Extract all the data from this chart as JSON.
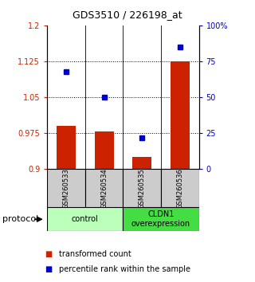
{
  "title": "GDS3510 / 226198_at",
  "samples": [
    "GSM260533",
    "GSM260534",
    "GSM260535",
    "GSM260536"
  ],
  "red_values": [
    0.99,
    0.978,
    0.925,
    1.125
  ],
  "blue_values_pct": [
    68,
    50,
    22,
    85
  ],
  "ylim_left": [
    0.9,
    1.2
  ],
  "ylim_right": [
    0,
    100
  ],
  "yticks_left": [
    0.9,
    0.975,
    1.05,
    1.125,
    1.2
  ],
  "yticks_right": [
    0,
    25,
    50,
    75,
    100
  ],
  "ytick_labels_left": [
    "0.9",
    "0.975",
    "1.05",
    "1.125",
    "1.2"
  ],
  "ytick_labels_right": [
    "0",
    "25",
    "50",
    "75",
    "100%"
  ],
  "groups": [
    {
      "label": "control",
      "samples": [
        0,
        1
      ],
      "color": "#bbffbb"
    },
    {
      "label": "CLDN1\noverexpression",
      "samples": [
        2,
        3
      ],
      "color": "#44dd44"
    }
  ],
  "red_color": "#cc2200",
  "blue_color": "#0000cc",
  "bar_base": 0.9,
  "bar_width": 0.5,
  "dotted_lines": [
    0.975,
    1.05,
    1.125
  ],
  "sample_box_color": "#cccccc",
  "legend_items": [
    {
      "color": "#cc2200",
      "label": "transformed count"
    },
    {
      "color": "#0000cc",
      "label": "percentile rank within the sample"
    }
  ],
  "title_fontsize": 9,
  "tick_fontsize": 7,
  "sample_fontsize": 6,
  "group_fontsize": 7,
  "legend_fontsize": 7
}
